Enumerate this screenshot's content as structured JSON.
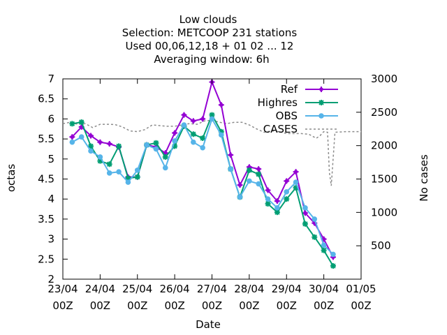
{
  "chart_data": {
    "type": "line",
    "title_lines": [
      "Low clouds",
      "Selection: METCOOP    231 stations",
      "Used  00,06,12,18 + 01 02 ... 12",
      "Averaging window:  6h"
    ],
    "xlabel": "Date",
    "ylabel": "octas",
    "y2label": "No cases",
    "xlim": [
      0,
      8
    ],
    "ylim": [
      2,
      7
    ],
    "y2lim": [
      0,
      3000
    ],
    "x_unit_note": "days since first tick",
    "x_ticks": [
      {
        "x": 0,
        "line1": "23/04",
        "line2": "00Z"
      },
      {
        "x": 1,
        "line1": "24/04",
        "line2": "00Z"
      },
      {
        "x": 2,
        "line1": "25/04",
        "line2": "00Z"
      },
      {
        "x": 3,
        "line1": "26/04",
        "line2": "00Z"
      },
      {
        "x": 4,
        "line1": "27/04",
        "line2": "00Z"
      },
      {
        "x": 5,
        "line1": "28/04",
        "line2": "00Z"
      },
      {
        "x": 6,
        "line1": "29/04",
        "line2": "00Z"
      },
      {
        "x": 7,
        "line1": "30/04",
        "line2": "00Z"
      },
      {
        "x": 8,
        "line1": "01/05",
        "line2": "00Z"
      }
    ],
    "y_ticks": [
      2,
      2.5,
      3,
      3.5,
      4,
      4.5,
      5,
      5.5,
      6,
      6.5,
      7
    ],
    "y_tick_labels": [
      "2",
      "2.5",
      "3",
      "3.5",
      "4",
      "4.5",
      "5",
      "5.5",
      "6",
      "6.5",
      "7"
    ],
    "y2_ticks": [
      500,
      1000,
      1500,
      2000,
      2500,
      3000
    ],
    "y2_tick_labels": [
      "500",
      "1000",
      "1500",
      "2000",
      "2500",
      "3000"
    ],
    "legend_position": "top-right",
    "series": [
      {
        "name": "Ref",
        "color": "#9400d3",
        "marker": "plus",
        "x": [
          0.25,
          0.5,
          0.75,
          1.0,
          1.25,
          1.5,
          1.75,
          2.0,
          2.25,
          2.5,
          2.75,
          3.0,
          3.25,
          3.5,
          3.75,
          4.0,
          4.25,
          4.5,
          4.75,
          5.0,
          5.25,
          5.5,
          5.75,
          6.0,
          6.25,
          6.5,
          6.75,
          7.0,
          7.25,
          7.5
        ],
        "values": [
          5.55,
          5.8,
          5.58,
          5.42,
          5.38,
          5.3,
          4.55,
          4.55,
          5.35,
          5.3,
          5.15,
          5.65,
          6.1,
          5.95,
          6.0,
          6.92,
          6.35,
          5.1,
          4.35,
          4.8,
          4.75,
          4.22,
          3.95,
          4.45,
          4.68,
          3.65,
          3.4,
          3.0,
          2.55,
          null
        ]
      },
      {
        "name": "Highres",
        "color": "#009e73",
        "marker": "star",
        "x": [
          0.25,
          0.5,
          0.75,
          1.0,
          1.25,
          1.5,
          1.75,
          2.0,
          2.25,
          2.5,
          2.75,
          3.0,
          3.25,
          3.5,
          3.75,
          4.0,
          4.25,
          4.5,
          4.75,
          5.0,
          5.25,
          5.5,
          5.75,
          6.0,
          6.25,
          6.5,
          6.75,
          7.0,
          7.25
        ],
        "values": [
          5.88,
          5.92,
          5.32,
          4.95,
          4.87,
          5.32,
          4.52,
          4.55,
          5.35,
          5.4,
          5.05,
          5.32,
          5.82,
          5.62,
          5.52,
          6.1,
          5.68,
          4.75,
          4.05,
          4.72,
          4.62,
          3.88,
          3.67,
          4.0,
          4.28,
          3.38,
          3.05,
          2.72,
          2.33
        ]
      },
      {
        "name": "OBS",
        "color": "#56b4e9",
        "marker": "diamond",
        "x": [
          0.25,
          0.5,
          0.75,
          1.0,
          1.25,
          1.5,
          1.75,
          2.0,
          2.25,
          2.5,
          2.75,
          3.0,
          3.25,
          3.5,
          3.75,
          4.0,
          4.25,
          4.5,
          4.75,
          5.0,
          5.25,
          5.5,
          5.75,
          6.0,
          6.25,
          6.5,
          6.75,
          7.0,
          7.25
        ],
        "values": [
          5.42,
          5.55,
          5.2,
          5.05,
          4.65,
          4.68,
          4.42,
          4.72,
          5.35,
          5.25,
          4.78,
          5.45,
          5.85,
          5.42,
          5.28,
          6.0,
          5.6,
          4.75,
          4.05,
          4.45,
          4.38,
          4.0,
          3.78,
          4.18,
          4.42,
          3.78,
          3.5,
          2.85,
          2.62
        ]
      }
    ],
    "cases_series": {
      "name": "CASES",
      "color": "#8c8c8c",
      "axis": "y2",
      "style": "dashed",
      "x": [
        0.0,
        0.2,
        0.4,
        0.6,
        0.8,
        1.0,
        1.2,
        1.4,
        1.6,
        1.8,
        2.0,
        2.2,
        2.4,
        2.6,
        2.8,
        3.0,
        3.2,
        3.4,
        3.6,
        3.8,
        4.0,
        4.2,
        4.4,
        4.6,
        4.8,
        5.0,
        5.2,
        5.4,
        5.6,
        5.8,
        6.0,
        6.2,
        6.4,
        6.6,
        6.8,
        6.9,
        7.0,
        7.1,
        7.15,
        7.2,
        7.3,
        7.6,
        8.0
      ],
      "values": [
        2330,
        2350,
        2320,
        2330,
        2270,
        2320,
        2320,
        2315,
        2280,
        2220,
        2210,
        2240,
        2310,
        2300,
        2290,
        2290,
        2310,
        2330,
        2320,
        2370,
        2380,
        2350,
        2330,
        2350,
        2350,
        2310,
        2250,
        2200,
        2220,
        2210,
        2180,
        2180,
        2180,
        2170,
        2110,
        2150,
        2210,
        2200,
        1600,
        1400,
        2200,
        2210,
        2210
      ]
    }
  }
}
